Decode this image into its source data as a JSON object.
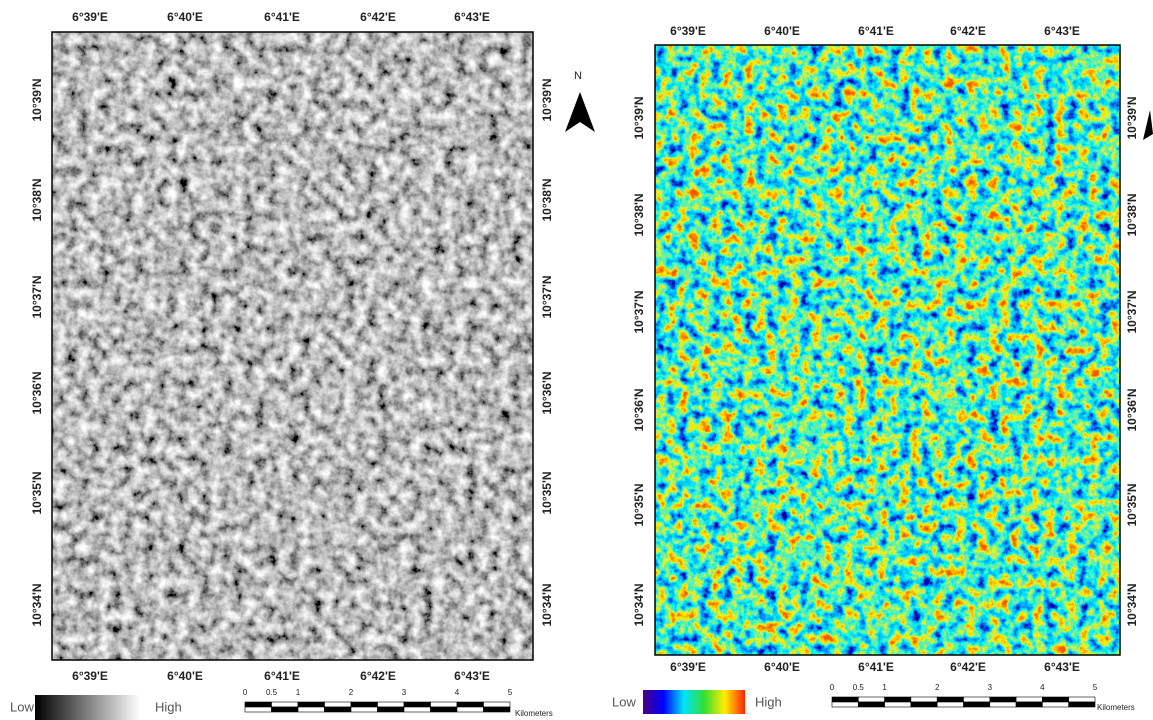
{
  "panels": [
    {
      "top_labels": [
        "6°39'E",
        "6°40'E",
        "6°41'E",
        "6°42'E",
        "6°43'E"
      ],
      "bottom_labels": [
        "6°39'E",
        "6°40'E",
        "6°41'E",
        "6°42'E",
        "6°43'E"
      ],
      "left_labels": [
        "10°39'N",
        "10°38'N",
        "10°37'N",
        "10°36'N",
        "10°35'N",
        "10°34'N"
      ],
      "right_labels": [
        "10°39'N",
        "10°38'N",
        "10°37'N",
        "10°36'N",
        "10°35'N",
        "10°34'N"
      ],
      "north": "N",
      "legend": {
        "low": "Low",
        "high": "High"
      },
      "scale": {
        "ticks": [
          "0",
          "0.5",
          "1",
          "2",
          "3",
          "4",
          "5"
        ],
        "unit": "Kilometers"
      }
    },
    {
      "top_labels": [
        "6°39'E",
        "6°40'E",
        "6°41'E",
        "6°42'E",
        "6°43'E"
      ],
      "bottom_labels": [
        "6°39'E",
        "6°40'E",
        "6°41'E",
        "6°42'E",
        "6°43'E"
      ],
      "left_labels": [
        "10°39'N",
        "10°38'N",
        "10°37'N",
        "10°36'N",
        "10°35'N",
        "10°34'N"
      ],
      "right_labels": [
        "10°39'N",
        "10°38'N",
        "10°37'N",
        "10°36'N",
        "10°35'N",
        "10°34'N"
      ],
      "legend": {
        "low": "Low",
        "high": "High"
      },
      "scale": {
        "ticks": [
          "0",
          "0.5",
          "1",
          "2",
          "3",
          "4",
          "5"
        ],
        "unit": "Kilometers"
      }
    }
  ]
}
